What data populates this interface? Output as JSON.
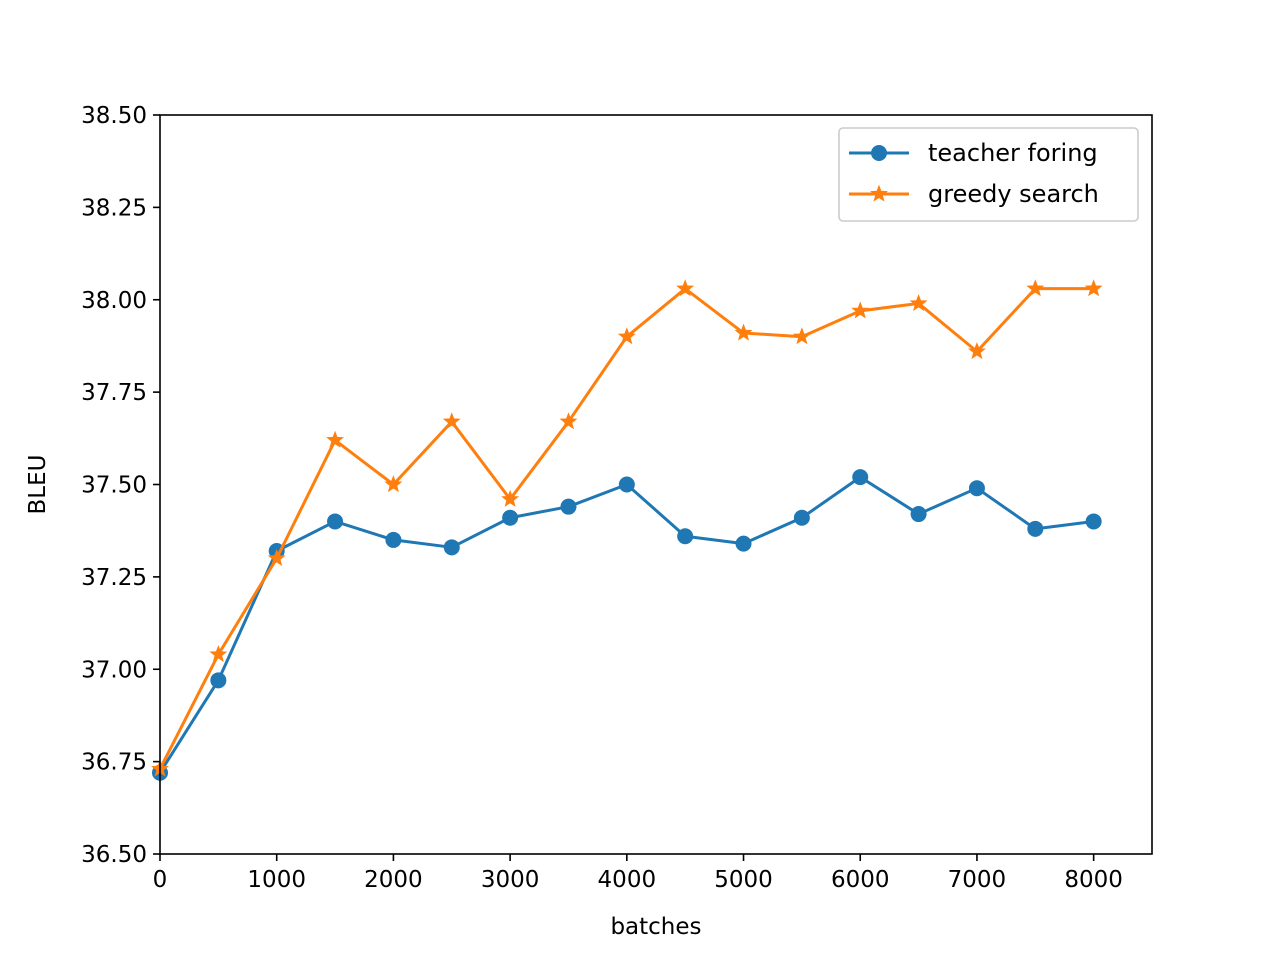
{
  "chart_data": {
    "type": "line",
    "title": "",
    "xlabel": "batches",
    "ylabel": "BLEU",
    "xlim": [
      0,
      8500
    ],
    "ylim": [
      36.5,
      38.5
    ],
    "xticks": [
      0,
      1000,
      2000,
      3000,
      4000,
      5000,
      6000,
      7000,
      8000
    ],
    "xtick_labels": [
      "0",
      "1000",
      "2000",
      "3000",
      "4000",
      "5000",
      "6000",
      "7000",
      "8000"
    ],
    "yticks": [
      36.5,
      36.75,
      37.0,
      37.25,
      37.5,
      37.75,
      38.0,
      38.25,
      38.5
    ],
    "ytick_labels": [
      "36.50",
      "36.75",
      "37.00",
      "37.25",
      "37.50",
      "37.75",
      "38.00",
      "38.25",
      "38.50"
    ],
    "grid": false,
    "legend_position": "top-right",
    "x": [
      0,
      500,
      1000,
      1500,
      2000,
      2500,
      3000,
      3500,
      4000,
      4500,
      5000,
      5500,
      6000,
      6500,
      7000,
      7500,
      8000
    ],
    "series": [
      {
        "name": "teacher foring",
        "color": "#1f77b4",
        "marker": "circle",
        "values": [
          36.72,
          36.97,
          37.32,
          37.4,
          37.35,
          37.33,
          37.41,
          37.44,
          37.5,
          37.36,
          37.34,
          37.41,
          37.52,
          37.42,
          37.49,
          37.38,
          37.4
        ]
      },
      {
        "name": "greedy search",
        "color": "#ff7f0e",
        "marker": "star",
        "values": [
          36.73,
          37.04,
          37.3,
          37.62,
          37.5,
          37.67,
          37.46,
          37.67,
          37.9,
          38.03,
          37.91,
          37.9,
          37.97,
          37.99,
          37.86,
          38.03,
          38.03
        ]
      }
    ]
  }
}
